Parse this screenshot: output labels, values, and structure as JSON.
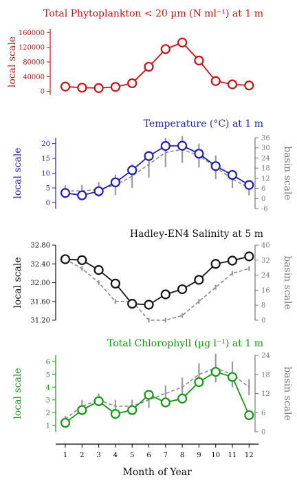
{
  "chart_data": [
    {
      "type": "line",
      "title": "Total Phytoplankton < 20 µm (N ml⁻¹) at 1 m",
      "color": "#cc1111",
      "left_label": "local scale",
      "right_label": "",
      "left_ticks": [
        "0",
        "40000",
        "80000",
        "120000",
        "160000"
      ],
      "left_ylim": [
        -10000,
        170000
      ],
      "right_ticks": [],
      "right_ylim": null,
      "x": [
        1,
        2,
        3,
        4,
        5,
        6,
        7,
        8,
        9,
        10,
        11,
        12
      ],
      "local": [
        13000,
        10000,
        9000,
        12000,
        22000,
        67000,
        115000,
        133000,
        84000,
        28000,
        19000,
        16000
      ],
      "basin_median": [],
      "basin_spread": []
    },
    {
      "type": "line",
      "title": "Temperature (°C) at 1 m",
      "color": "#1f1fb4",
      "left_label": "local scale",
      "right_label": "basin scale",
      "left_ticks": [
        "0",
        "5",
        "10",
        "15",
        "20"
      ],
      "left_ylim": [
        -2,
        22
      ],
      "right_ticks": [
        "-6",
        "0",
        "6",
        "12",
        "18",
        "24",
        "30",
        "36"
      ],
      "right_ylim": [
        -6,
        36
      ],
      "x": [
        1,
        2,
        3,
        4,
        5,
        6,
        7,
        8,
        9,
        10,
        11,
        12
      ],
      "local": [
        3.3,
        2.5,
        3.9,
        6.9,
        11.0,
        15.8,
        19.2,
        19.3,
        16.6,
        12.4,
        9.4,
        6.0
      ],
      "basin_median": [
        4.0,
        4.0,
        4.5,
        6.0,
        9.0,
        13.0,
        17.0,
        18.0,
        16.0,
        12.0,
        8.0,
        5.0
      ],
      "basin_spread": [
        4,
        4,
        5,
        7,
        8,
        9,
        10,
        9,
        8,
        8,
        6,
        5
      ]
    },
    {
      "type": "line",
      "title": "Hadley-EN4 Salinity at 5 m",
      "color": "#111111",
      "left_label": "local scale",
      "right_label": "basin scale",
      "left_ticks": [
        "31.20",
        "31.60",
        "32.00",
        "32.40",
        "32.80"
      ],
      "left_ylim": [
        31.2,
        32.8
      ],
      "right_ticks": [
        "0",
        "8",
        "16",
        "24",
        "32",
        "40"
      ],
      "right_ylim": [
        0,
        40
      ],
      "x": [
        1,
        2,
        3,
        4,
        5,
        6,
        7,
        8,
        9,
        10,
        11,
        12
      ],
      "local": [
        32.5,
        32.48,
        32.27,
        31.98,
        31.55,
        31.53,
        31.75,
        31.86,
        32.06,
        32.4,
        32.47,
        32.56
      ],
      "basin_median": [
        32.5,
        32.3,
        32.0,
        31.6,
        31.6,
        31.2,
        31.2,
        31.3,
        31.6,
        31.9,
        32.2,
        32.3
      ],
      "basin_spread": [
        1.5,
        1.5,
        1.5,
        1.5,
        1.5,
        1.5,
        1.5,
        1.5,
        1.5,
        1.5,
        1.5,
        1.5
      ]
    },
    {
      "type": "line",
      "title": "Total Chlorophyll (µg l⁻¹) at 1 m",
      "color": "#119911",
      "left_label": "local scale",
      "right_label": "basin scale",
      "left_ticks": [
        "1",
        "2",
        "3",
        "4",
        "5",
        "6"
      ],
      "left_ylim": [
        0.5,
        6.5
      ],
      "right_ticks": [
        "0",
        "6",
        "12",
        "18",
        "24"
      ],
      "right_ylim": [
        0,
        24
      ],
      "x": [
        1,
        2,
        3,
        4,
        5,
        6,
        7,
        8,
        9,
        10,
        11,
        12
      ],
      "local": [
        1.2,
        2.2,
        2.9,
        1.9,
        2.2,
        3.4,
        2.8,
        3.1,
        4.4,
        5.2,
        4.8,
        1.8
      ],
      "basin_median": [
        1.5,
        2.5,
        3.0,
        2.5,
        2.5,
        3.0,
        3.5,
        4.0,
        5.0,
        5.5,
        5.0,
        4.0
      ],
      "basin_spread": [
        2,
        4,
        4,
        4,
        4,
        5,
        5,
        6,
        7,
        9,
        8,
        5
      ]
    }
  ],
  "x_axis": {
    "label": "Month of Year",
    "ticks": [
      "1",
      "2",
      "3",
      "4",
      "5",
      "6",
      "7",
      "8",
      "9",
      "10",
      "11",
      "12"
    ]
  }
}
